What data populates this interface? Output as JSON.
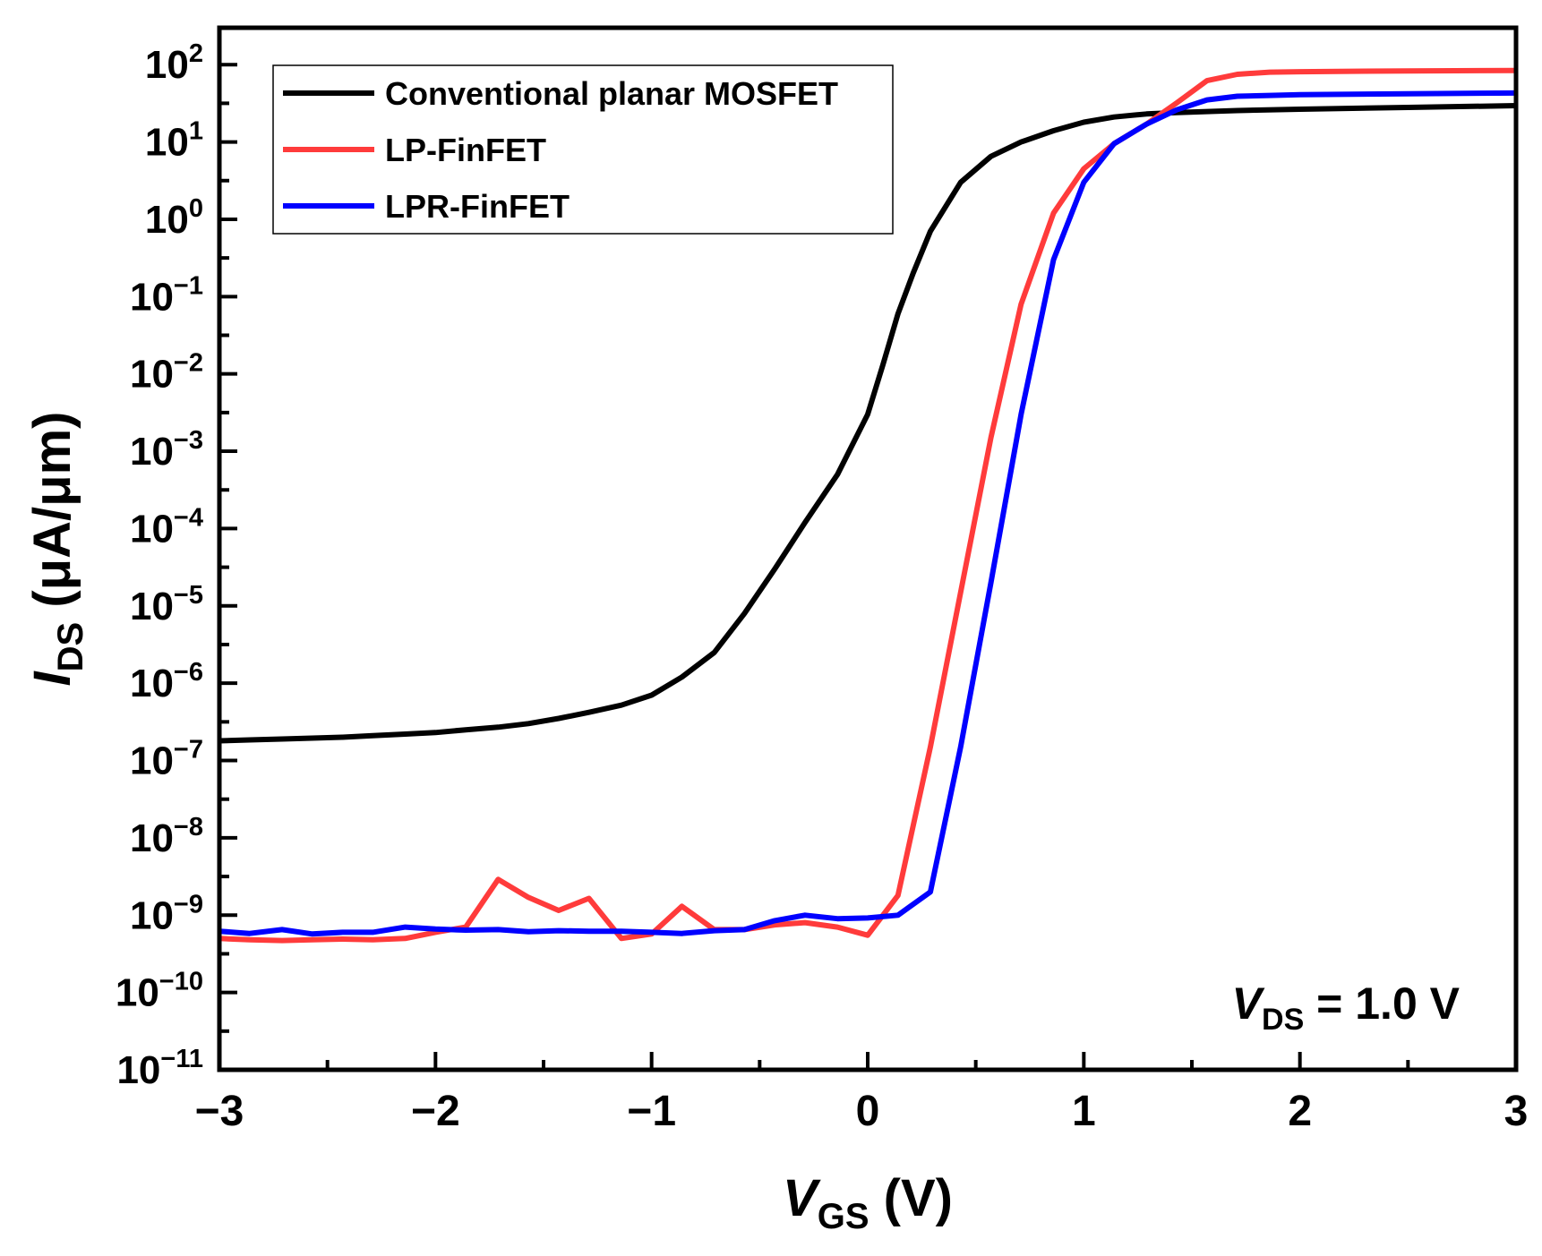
{
  "chart_data": {
    "type": "line",
    "xlabel": {
      "main": "V",
      "sub": "GS",
      "suffix": " (V)"
    },
    "ylabel": {
      "main": "I",
      "sub": "DS",
      "suffix": " (μA/μm)"
    },
    "xlim": [
      -3,
      3
    ],
    "ylim": [
      1e-11,
      300
    ],
    "yscale": "log",
    "grid": false,
    "legend_position": "top-left",
    "x_ticks": [
      {
        "value": -3,
        "label": "−3"
      },
      {
        "value": -2,
        "label": "−2"
      },
      {
        "value": -1,
        "label": "−1"
      },
      {
        "value": 0,
        "label": "0"
      },
      {
        "value": 1,
        "label": "1"
      },
      {
        "value": 2,
        "label": "2"
      },
      {
        "value": 3,
        "label": "3"
      }
    ],
    "y_ticks": [
      {
        "value": 100,
        "base": "10",
        "exp": "2"
      },
      {
        "value": 10,
        "base": "10",
        "exp": "1"
      },
      {
        "value": 1,
        "base": "10",
        "exp": "0"
      },
      {
        "value": 0.1,
        "base": "10",
        "exp": "−1"
      },
      {
        "value": 0.01,
        "base": "10",
        "exp": "−2"
      },
      {
        "value": 0.001,
        "base": "10",
        "exp": "−3"
      },
      {
        "value": 0.0001,
        "base": "10",
        "exp": "−4"
      },
      {
        "value": 1e-05,
        "base": "10",
        "exp": "−5"
      },
      {
        "value": 1e-06,
        "base": "10",
        "exp": "−6"
      },
      {
        "value": 1e-07,
        "base": "10",
        "exp": "−7"
      },
      {
        "value": 1e-08,
        "base": "10",
        "exp": "−8"
      },
      {
        "value": 1e-09,
        "base": "10",
        "exp": "−9"
      },
      {
        "value": 1e-10,
        "base": "10",
        "exp": "−10"
      },
      {
        "value": 1e-11,
        "base": "10",
        "exp": "−11"
      }
    ],
    "annotation": {
      "main": "V",
      "sub": "DS",
      "suffix": " = 1.0 V"
    },
    "series": [
      {
        "name": "Conventional planar MOSFET",
        "color": "#000000",
        "points": [
          [
            -3.0,
            1.8e-07
          ],
          [
            -2.86,
            1.85e-07
          ],
          [
            -2.71,
            1.9e-07
          ],
          [
            -2.57,
            1.95e-07
          ],
          [
            -2.43,
            2e-07
          ],
          [
            -2.29,
            2.1e-07
          ],
          [
            -2.14,
            2.2e-07
          ],
          [
            -2.0,
            2.3e-07
          ],
          [
            -1.86,
            2.5e-07
          ],
          [
            -1.71,
            2.7e-07
          ],
          [
            -1.57,
            3e-07
          ],
          [
            -1.43,
            3.5e-07
          ],
          [
            -1.29,
            4.2e-07
          ],
          [
            -1.14,
            5.2e-07
          ],
          [
            -1.0,
            7e-07
          ],
          [
            -0.86,
            1.2e-06
          ],
          [
            -0.71,
            2.5e-06
          ],
          [
            -0.57,
            8e-06
          ],
          [
            -0.43,
            3e-05
          ],
          [
            -0.29,
            0.00012
          ],
          [
            -0.14,
            0.0005
          ],
          [
            0.0,
            0.003
          ],
          [
            0.07,
            0.013
          ],
          [
            0.14,
            0.06
          ],
          [
            0.21,
            0.2
          ],
          [
            0.29,
            0.7
          ],
          [
            0.43,
            3.0
          ],
          [
            0.57,
            6.5
          ],
          [
            0.71,
            10
          ],
          [
            0.86,
            14
          ],
          [
            1.0,
            18
          ],
          [
            1.14,
            21
          ],
          [
            1.29,
            23
          ],
          [
            1.43,
            24
          ],
          [
            1.71,
            25.5
          ],
          [
            2.0,
            26.5
          ],
          [
            2.5,
            28
          ],
          [
            3.0,
            29.5
          ]
        ]
      },
      {
        "name": "LP-FinFET",
        "color": "#ff3b3b",
        "points": [
          [
            -3.0,
            5e-10
          ],
          [
            -2.86,
            4.8e-10
          ],
          [
            -2.71,
            4.7e-10
          ],
          [
            -2.57,
            4.8e-10
          ],
          [
            -2.43,
            4.9e-10
          ],
          [
            -2.29,
            4.8e-10
          ],
          [
            -2.14,
            5e-10
          ],
          [
            -2.0,
            6e-10
          ],
          [
            -1.86,
            7e-10
          ],
          [
            -1.71,
            2.9e-09
          ],
          [
            -1.57,
            1.7e-09
          ],
          [
            -1.43,
            1.15e-09
          ],
          [
            -1.29,
            1.65e-09
          ],
          [
            -1.14,
            5e-10
          ],
          [
            -1.0,
            5.7e-10
          ],
          [
            -0.86,
            1.3e-09
          ],
          [
            -0.71,
            6.5e-10
          ],
          [
            -0.57,
            6.5e-10
          ],
          [
            -0.43,
            7.5e-10
          ],
          [
            -0.29,
            8e-10
          ],
          [
            -0.14,
            7e-10
          ],
          [
            0.0,
            5.5e-10
          ],
          [
            0.14,
            1.8e-09
          ],
          [
            0.29,
            1.5e-07
          ],
          [
            0.43,
            1.5e-05
          ],
          [
            0.57,
            0.0015
          ],
          [
            0.71,
            0.08
          ],
          [
            0.86,
            1.2
          ],
          [
            1.0,
            4.5
          ],
          [
            1.14,
            9.5
          ],
          [
            1.29,
            17
          ],
          [
            1.43,
            32
          ],
          [
            1.57,
            62
          ],
          [
            1.71,
            75
          ],
          [
            1.86,
            80
          ],
          [
            2.0,
            81
          ],
          [
            2.5,
            83
          ],
          [
            3.0,
            84
          ]
        ]
      },
      {
        "name": "LPR-FinFET",
        "color": "#0000ff",
        "points": [
          [
            -3.0,
            6.2e-10
          ],
          [
            -2.86,
            5.8e-10
          ],
          [
            -2.71,
            6.5e-10
          ],
          [
            -2.57,
            5.7e-10
          ],
          [
            -2.43,
            6e-10
          ],
          [
            -2.29,
            6e-10
          ],
          [
            -2.14,
            7e-10
          ],
          [
            -2.0,
            6.6e-10
          ],
          [
            -1.86,
            6.4e-10
          ],
          [
            -1.71,
            6.5e-10
          ],
          [
            -1.57,
            6.1e-10
          ],
          [
            -1.43,
            6.3e-10
          ],
          [
            -1.29,
            6.2e-10
          ],
          [
            -1.14,
            6.2e-10
          ],
          [
            -1.0,
            6e-10
          ],
          [
            -0.86,
            5.8e-10
          ],
          [
            -0.71,
            6.3e-10
          ],
          [
            -0.57,
            6.5e-10
          ],
          [
            -0.43,
            8.5e-10
          ],
          [
            -0.29,
            1e-09
          ],
          [
            -0.14,
            9e-10
          ],
          [
            0.0,
            9.2e-10
          ],
          [
            0.14,
            1e-09
          ],
          [
            0.29,
            2e-09
          ],
          [
            0.43,
            1.5e-07
          ],
          [
            0.57,
            2e-05
          ],
          [
            0.71,
            0.003
          ],
          [
            0.86,
            0.3
          ],
          [
            1.0,
            3.0
          ],
          [
            1.14,
            9.5
          ],
          [
            1.29,
            17
          ],
          [
            1.43,
            26
          ],
          [
            1.57,
            35
          ],
          [
            1.71,
            39
          ],
          [
            1.86,
            40
          ],
          [
            2.0,
            41
          ],
          [
            2.5,
            42
          ],
          [
            3.0,
            43
          ]
        ]
      }
    ]
  }
}
